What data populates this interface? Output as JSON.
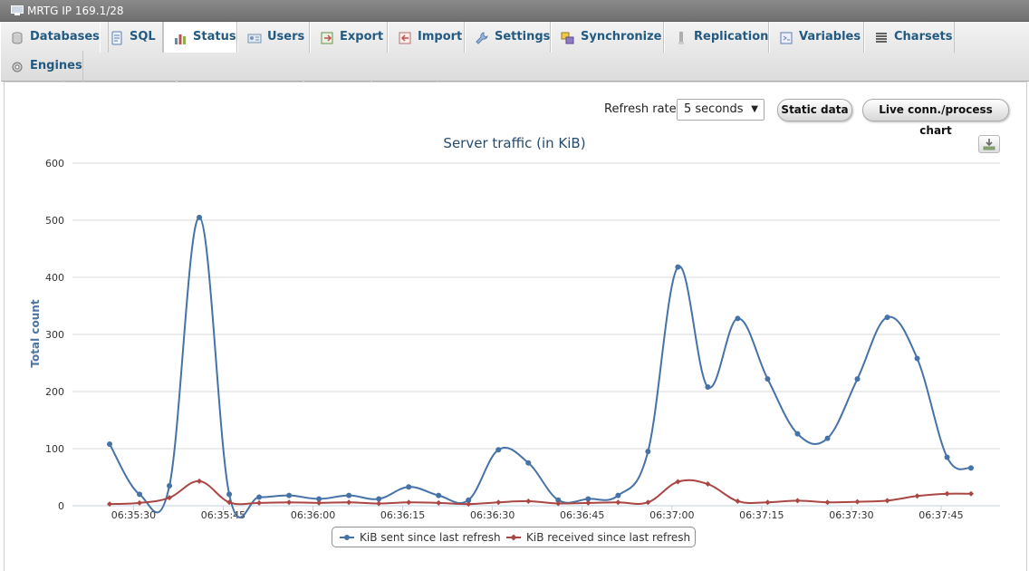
{
  "window": {
    "title": "MRTG IP 169.1/28"
  },
  "menu": {
    "tabs": [
      {
        "label": "Databases",
        "icon": "database-icon"
      },
      {
        "label": "SQL",
        "icon": "sql-icon"
      },
      {
        "label": "Status",
        "icon": "status-icon",
        "active": true
      },
      {
        "label": "Users",
        "icon": "users-icon"
      },
      {
        "label": "Export",
        "icon": "export-icon"
      },
      {
        "label": "Import",
        "icon": "import-icon"
      },
      {
        "label": "Settings",
        "icon": "wrench-icon"
      },
      {
        "label": "Synchronize",
        "icon": "synchronize-icon"
      },
      {
        "label": "Replication",
        "icon": "replication-icon"
      },
      {
        "label": "Variables",
        "icon": "variables-icon"
      },
      {
        "label": "Charsets",
        "icon": "charsets-icon"
      },
      {
        "label": "Engines",
        "icon": "engines-icon"
      }
    ]
  },
  "controls": {
    "refresh_label": "Refresh rate:",
    "refresh_value": "5 seconds",
    "static_button": "Static data",
    "live_button": "Live conn./process chart"
  },
  "colors": {
    "sent": "#4572a7",
    "received": "#aa4643",
    "link": "#235a81"
  },
  "chart_data": {
    "type": "line",
    "title": "Server traffic (in KiB)",
    "ylabel": "Total count",
    "xlabel": "",
    "ylim": [
      0,
      600
    ],
    "yticks": [
      0,
      100,
      200,
      300,
      400,
      500,
      600
    ],
    "x_tick_labels": [
      "06:35:30",
      "06:35:45",
      "06:36:00",
      "06:36:15",
      "06:36:30",
      "06:36:45",
      "06:37:00",
      "06:37:15",
      "06:37:30",
      "06:37:45"
    ],
    "x_tick_seconds": [
      30,
      45,
      60,
      75,
      90,
      105,
      120,
      135,
      150,
      165
    ],
    "x_seconds": [
      26,
      31,
      36,
      41,
      46,
      51,
      56,
      61,
      66,
      71,
      76,
      81,
      86,
      91,
      96,
      101,
      106,
      111,
      116,
      121,
      126,
      131,
      136,
      141,
      146,
      151,
      156,
      161,
      166,
      170
    ],
    "grid": true,
    "legend_position": "bottom-center",
    "series": [
      {
        "name": "KiB sent since last refresh",
        "values": [
          108,
          20,
          35,
          505,
          20,
          15,
          18,
          12,
          18,
          12,
          33,
          18,
          10,
          98,
          75,
          10,
          12,
          18,
          95,
          418,
          208,
          328,
          222,
          126,
          118,
          222,
          330,
          258,
          85,
          66
        ]
      },
      {
        "name": "KiB received since last refresh",
        "values": [
          3,
          5,
          14,
          43,
          6,
          5,
          6,
          5,
          6,
          4,
          6,
          5,
          3,
          6,
          8,
          4,
          5,
          6,
          6,
          42,
          38,
          8,
          6,
          9,
          6,
          7,
          9,
          17,
          21,
          21
        ]
      }
    ]
  }
}
